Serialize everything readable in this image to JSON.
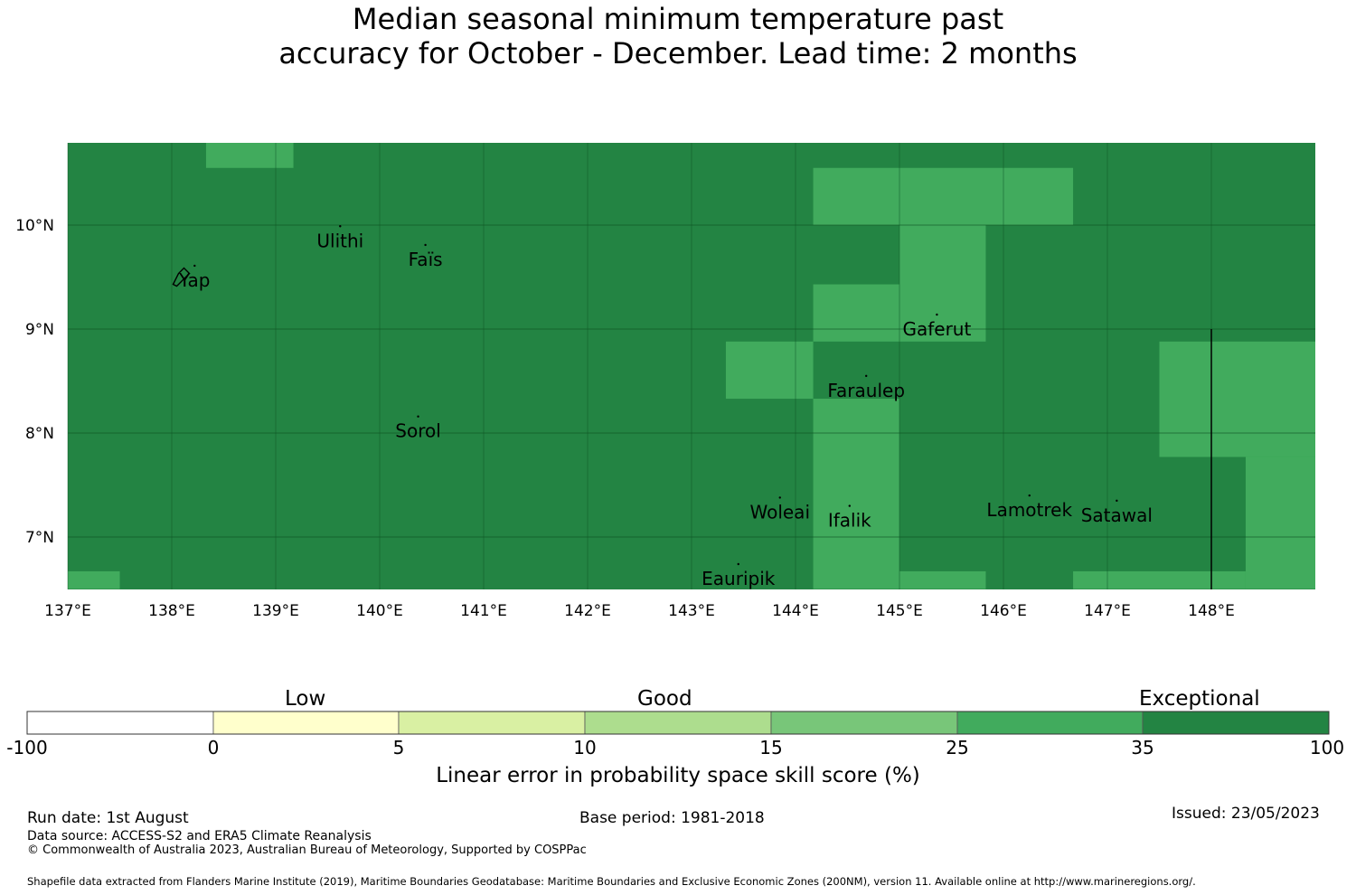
{
  "title": {
    "line1": "Median seasonal minimum temperature past",
    "line2": "accuracy for October - December. Lead time: 2 months"
  },
  "map": {
    "base_color": "#238443",
    "highlight_color": "#41ab5d",
    "lon_range": [
      137,
      149
    ],
    "lat_range": [
      6.5,
      10.8
    ],
    "lon_ticks": [
      "137°E",
      "138°E",
      "139°E",
      "140°E",
      "141°E",
      "142°E",
      "143°E",
      "144°E",
      "145°E",
      "146°E",
      "147°E",
      "148°E"
    ],
    "lat_ticks": [
      "10°N",
      "9°N",
      "8°N",
      "7°N"
    ],
    "places": [
      {
        "name": "Yap",
        "lon": 138.22,
        "lat": 9.47
      },
      {
        "name": "Ulithi",
        "lon": 139.62,
        "lat": 9.85
      },
      {
        "name": "Faïs",
        "lon": 140.44,
        "lat": 9.67
      },
      {
        "name": "Gaferut",
        "lon": 145.36,
        "lat": 9.0
      },
      {
        "name": "Faraulep",
        "lon": 144.68,
        "lat": 8.41
      },
      {
        "name": "Sorol",
        "lon": 140.37,
        "lat": 8.02
      },
      {
        "name": "Woleai",
        "lon": 143.85,
        "lat": 7.24
      },
      {
        "name": "Ifalik",
        "lon": 144.52,
        "lat": 7.16
      },
      {
        "name": "Lamotrek",
        "lon": 146.25,
        "lat": 7.26
      },
      {
        "name": "Satawal",
        "lon": 147.09,
        "lat": 7.21
      },
      {
        "name": "Eauripik",
        "lon": 143.45,
        "lat": 6.6
      }
    ],
    "skill_cells": [
      {
        "lon": [
          138.33,
          139.17
        ],
        "lat": [
          10.55,
          10.8
        ],
        "category": "25-35"
      },
      {
        "lon": [
          137.0,
          137.5
        ],
        "lat": [
          6.5,
          6.67
        ],
        "category": "25-35"
      },
      {
        "lon": [
          144.17,
          146.67
        ],
        "lat": [
          10.0,
          10.55
        ],
        "category": "25-35"
      },
      {
        "lon": [
          145.0,
          145.83
        ],
        "lat": [
          8.88,
          10.0
        ],
        "category": "25-35"
      },
      {
        "lon": [
          144.17,
          145.0
        ],
        "lat": [
          8.88,
          9.43
        ],
        "category": "25-35"
      },
      {
        "lon": [
          143.33,
          144.17
        ],
        "lat": [
          8.33,
          8.88
        ],
        "category": "25-35"
      },
      {
        "lon": [
          144.17,
          145.0
        ],
        "lat": [
          6.5,
          8.33
        ],
        "category": "25-35"
      },
      {
        "lon": [
          145.0,
          145.83
        ],
        "lat": [
          6.5,
          6.67
        ],
        "category": "25-35"
      },
      {
        "lon": [
          146.67,
          148.33
        ],
        "lat": [
          6.5,
          6.67
        ],
        "category": "25-35"
      },
      {
        "lon": [
          147.5,
          149.0
        ],
        "lat": [
          7.77,
          8.88
        ],
        "category": "25-35"
      },
      {
        "lon": [
          148.33,
          149.0
        ],
        "lat": [
          6.5,
          7.77
        ],
        "category": "25-35"
      }
    ]
  },
  "colorbar": {
    "group_labels": [
      "Low",
      "Good",
      "Exceptional"
    ],
    "ticks": [
      "-100",
      "0",
      "5",
      "10",
      "15",
      "25",
      "35",
      "100"
    ],
    "colors": [
      "#ffffff",
      "#ffffcc",
      "#d9f0a3",
      "#addd8e",
      "#78c679",
      "#41ab5d",
      "#238443"
    ],
    "title": "Linear error in probability space skill score (%)"
  },
  "footer": {
    "run_date": "Run date: 1st August",
    "base_period": "Base period: 1981-2018",
    "issued": "Issued: 23/05/2023",
    "data_source": "Data source: ACCESS-S2 and ERA5 Climate Reanalysis",
    "copyright": "© Commonwealth of Australia 2023, Australian Bureau of Meteorology, Supported by COSPPac",
    "shapefile": "Shapefile data extracted from Flanders Marine Institute (2019), Maritime Boundaries Geodatabase: Maritime Boundaries and Exclusive Economic Zones (200NM), version 11. Available online at http://www.marineregions.org/."
  }
}
